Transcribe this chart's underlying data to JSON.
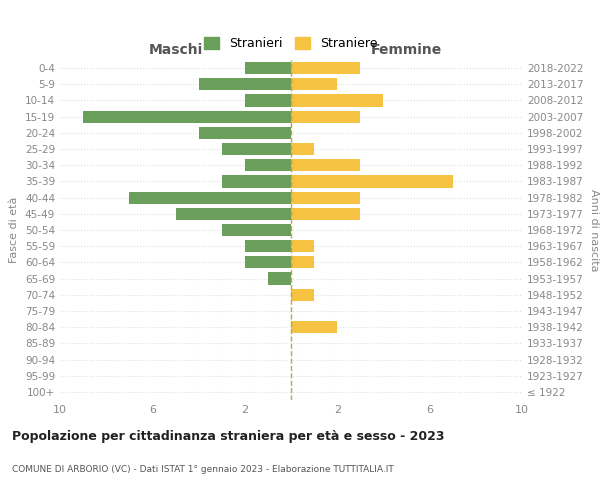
{
  "age_groups": [
    "100+",
    "95-99",
    "90-94",
    "85-89",
    "80-84",
    "75-79",
    "70-74",
    "65-69",
    "60-64",
    "55-59",
    "50-54",
    "45-49",
    "40-44",
    "35-39",
    "30-34",
    "25-29",
    "20-24",
    "15-19",
    "10-14",
    "5-9",
    "0-4"
  ],
  "birth_years": [
    "≤ 1922",
    "1923-1927",
    "1928-1932",
    "1933-1937",
    "1938-1942",
    "1943-1947",
    "1948-1952",
    "1953-1957",
    "1958-1962",
    "1963-1967",
    "1968-1972",
    "1973-1977",
    "1978-1982",
    "1983-1987",
    "1988-1992",
    "1993-1997",
    "1998-2002",
    "2003-2007",
    "2008-2012",
    "2013-2017",
    "2018-2022"
  ],
  "males": [
    0,
    0,
    0,
    0,
    0,
    0,
    0,
    1,
    2,
    2,
    3,
    5,
    7,
    3,
    2,
    3,
    4,
    9,
    2,
    4,
    2
  ],
  "females": [
    0,
    0,
    0,
    0,
    2,
    0,
    1,
    0,
    1,
    1,
    0,
    3,
    3,
    7,
    3,
    1,
    0,
    3,
    4,
    2,
    3
  ],
  "color_males": "#6a9e5b",
  "color_females": "#f5c242",
  "title": "Popolazione per cittadinanza straniera per età e sesso - 2023",
  "subtitle": "COMUNE DI ARBORIO (VC) - Dati ISTAT 1° gennaio 2023 - Elaborazione TUTTITALIA.IT",
  "xlabel_left": "Maschi",
  "xlabel_right": "Femmine",
  "ylabel_left": "Fasce di età",
  "ylabel_right": "Anni di nascita",
  "legend_males": "Stranieri",
  "legend_females": "Straniere",
  "xlim": 10,
  "background_color": "#ffffff",
  "grid_color": "#dddddd",
  "dashed_line_color": "#b8a84a"
}
